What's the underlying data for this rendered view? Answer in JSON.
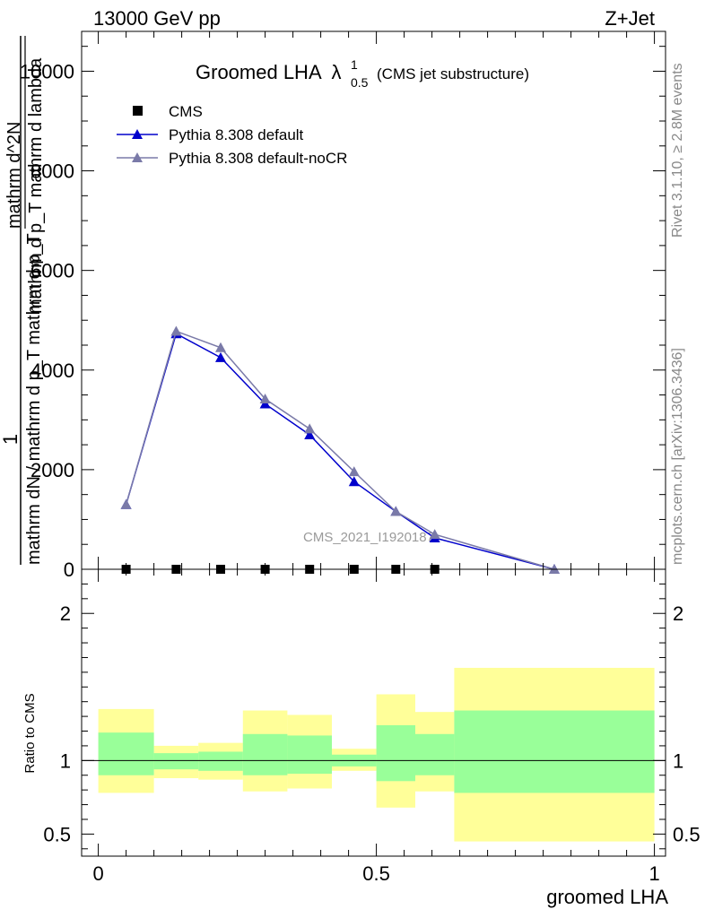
{
  "header": {
    "left": "13000 GeV pp",
    "right": "Z+Jet"
  },
  "side_labels": {
    "rivet": "Rivet 3.1.10, ≥ 2.8M events",
    "mcplots": "mcplots.cern.ch [arXiv:1306.3436]"
  },
  "watermark": "CMS_2021_I1920187",
  "chart_data": [
    {
      "type": "line",
      "title": "Groomed LHA",
      "title_symbol": "λ",
      "title_superscript": "1",
      "title_subscript": "0.5",
      "title_suffix": "(CMS jet substructure)",
      "ylabel_parts": {
        "one": "1",
        "denominator": "mathrm dN / mathrm d p_T mathrm d p_T",
        "numerator": "mathrm d^2N",
        "numerator_denominator": "mathrm d p_T mathrm d lambda"
      },
      "xlim": [
        -0.03,
        1.02
      ],
      "ylim": [
        0,
        10800
      ],
      "y_ticks": [
        {
          "value": 0,
          "label": "0"
        },
        {
          "value": 2000,
          "label": "2000"
        },
        {
          "value": 4000,
          "label": "4000"
        },
        {
          "value": 6000,
          "label": "6000"
        },
        {
          "value": 8000,
          "label": "8000"
        },
        {
          "value": 10000,
          "label": "10000"
        }
      ],
      "legend": {
        "placement": "top-left",
        "entries": [
          {
            "name": "CMS",
            "marker": "square",
            "color": "#000000"
          },
          {
            "name": "Pythia 8.308 default",
            "marker": "triangle",
            "color": "#0000cc"
          },
          {
            "name": "Pythia 8.308 default-noCR",
            "marker": "triangle",
            "color": "#7a7aa8"
          }
        ]
      },
      "series": [
        {
          "name": "CMS",
          "color": "#000000",
          "x": [
            0.05,
            0.14,
            0.22,
            0.3,
            0.38,
            0.46,
            0.535,
            0.605
          ],
          "y": [
            0,
            0,
            0,
            0,
            0,
            0,
            0,
            0
          ]
        },
        {
          "name": "Pythia 8.308 default",
          "color": "#0000cc",
          "x": [
            0.05,
            0.14,
            0.22,
            0.3,
            0.38,
            0.46,
            0.535,
            0.605,
            0.82
          ],
          "y": [
            1300,
            4730,
            4250,
            3320,
            2700,
            1760,
            1160,
            630,
            0
          ]
        },
        {
          "name": "Pythia 8.308 default-noCR",
          "color": "#7a7aa8",
          "x": [
            0.05,
            0.14,
            0.22,
            0.3,
            0.38,
            0.46,
            0.535,
            0.605,
            0.82
          ],
          "y": [
            1300,
            4780,
            4450,
            3420,
            2820,
            1960,
            1160,
            700,
            0
          ]
        }
      ]
    },
    {
      "type": "area",
      "ylabel": "Ratio to CMS",
      "xlabel": "groomed LHA",
      "xlim": [
        -0.03,
        1.02
      ],
      "ylim": [
        0.35,
        2.3
      ],
      "reference_line": 1,
      "y_ticks": [
        {
          "value": 0.5,
          "label": "0.5"
        },
        {
          "value": 1,
          "label": "1"
        },
        {
          "value": 2,
          "label": "2"
        }
      ],
      "x_ticks": [
        {
          "value": 0,
          "label": "0"
        },
        {
          "value": 0.5,
          "label": "0.5"
        },
        {
          "value": 1,
          "label": "1"
        }
      ],
      "bands": [
        {
          "color": "#ffff99",
          "bins": [
            {
              "x0": 0.0,
              "x1": 0.1,
              "low": 0.78,
              "high": 1.35
            },
            {
              "x0": 0.1,
              "x1": 0.18,
              "low": 0.88,
              "high": 1.1
            },
            {
              "x0": 0.18,
              "x1": 0.26,
              "low": 0.87,
              "high": 1.12
            },
            {
              "x0": 0.26,
              "x1": 0.34,
              "low": 0.79,
              "high": 1.34
            },
            {
              "x0": 0.34,
              "x1": 0.42,
              "low": 0.81,
              "high": 1.31
            },
            {
              "x0": 0.42,
              "x1": 0.5,
              "low": 0.93,
              "high": 1.08
            },
            {
              "x0": 0.5,
              "x1": 0.57,
              "low": 0.68,
              "high": 1.45
            },
            {
              "x0": 0.57,
              "x1": 0.64,
              "low": 0.79,
              "high": 1.33
            },
            {
              "x0": 0.64,
              "x1": 1.0,
              "low": 0.45,
              "high": 1.63
            }
          ]
        },
        {
          "color": "#99ff99",
          "bins": [
            {
              "x0": 0.0,
              "x1": 0.1,
              "low": 0.9,
              "high": 1.19
            },
            {
              "x0": 0.1,
              "x1": 0.18,
              "low": 0.94,
              "high": 1.05
            },
            {
              "x0": 0.18,
              "x1": 0.26,
              "low": 0.93,
              "high": 1.06
            },
            {
              "x0": 0.26,
              "x1": 0.34,
              "low": 0.9,
              "high": 1.18
            },
            {
              "x0": 0.34,
              "x1": 0.42,
              "low": 0.91,
              "high": 1.17
            },
            {
              "x0": 0.42,
              "x1": 0.5,
              "low": 0.96,
              "high": 1.04
            },
            {
              "x0": 0.5,
              "x1": 0.57,
              "low": 0.86,
              "high": 1.24
            },
            {
              "x0": 0.57,
              "x1": 0.64,
              "low": 0.9,
              "high": 1.18
            },
            {
              "x0": 0.64,
              "x1": 1.0,
              "low": 0.78,
              "high": 1.34
            }
          ]
        }
      ]
    }
  ]
}
